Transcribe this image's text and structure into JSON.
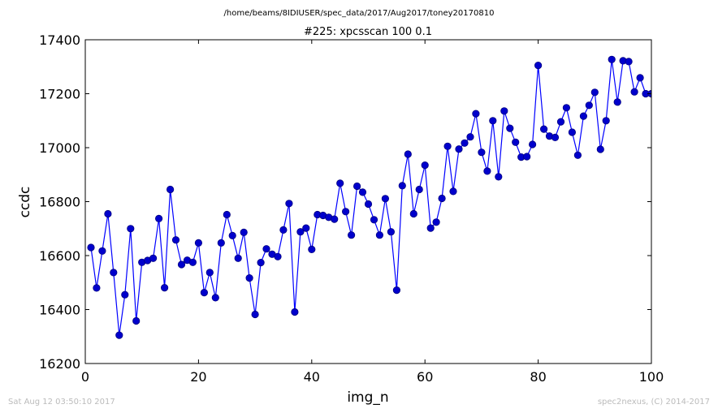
{
  "page": {
    "suptitle": "/home/beams/8IDIUSER/spec_data/2017/Aug2017/toney20170810",
    "footer_left": "Sat Aug 12 03:50:10 2017",
    "footer_right": "spec2nexus, (C) 2014-2017"
  },
  "chart_data": {
    "type": "line",
    "markers": "circle",
    "title": "#225: xpcsscan 100 0.1",
    "xlabel": "img_n",
    "ylabel": "ccdc",
    "xlim": [
      0,
      100
    ],
    "ylim": [
      16200,
      17400
    ],
    "grid": false,
    "color": "#0000ff",
    "xticks": [
      0,
      20,
      40,
      60,
      80,
      100
    ],
    "yticks": [
      16200,
      16400,
      16600,
      16800,
      17000,
      17200,
      17400
    ],
    "x": [
      1,
      2,
      3,
      4,
      5,
      6,
      7,
      8,
      9,
      10,
      11,
      12,
      13,
      14,
      15,
      16,
      17,
      18,
      19,
      20,
      21,
      22,
      23,
      24,
      25,
      26,
      27,
      28,
      29,
      30,
      31,
      32,
      33,
      34,
      35,
      36,
      37,
      38,
      39,
      40,
      41,
      42,
      43,
      44,
      45,
      46,
      47,
      48,
      49,
      50,
      51,
      52,
      53,
      54,
      55,
      56,
      57,
      58,
      59,
      60,
      61,
      62,
      63,
      64,
      65,
      66,
      67,
      68,
      69,
      70,
      71,
      72,
      73,
      74,
      75,
      76,
      77,
      78,
      79,
      80,
      81,
      82,
      83,
      84,
      85,
      86,
      87,
      88,
      89,
      90,
      91,
      92,
      93,
      94,
      95,
      96,
      97,
      98,
      99,
      100
    ],
    "y": [
      16630,
      16480,
      16617,
      16755,
      16537,
      16305,
      16455,
      16700,
      16358,
      16575,
      16582,
      16590,
      16737,
      16481,
      16845,
      16658,
      16567,
      16583,
      16575,
      16647,
      16463,
      16537,
      16444,
      16647,
      16752,
      16674,
      16590,
      16686,
      16517,
      16382,
      16574,
      16625,
      16605,
      16596,
      16695,
      16793,
      16391,
      16688,
      16702,
      16623,
      16752,
      16749,
      16742,
      16735,
      16868,
      16763,
      16676,
      16857,
      16835,
      16791,
      16733,
      16676,
      16811,
      16688,
      16472,
      16859,
      16976,
      16755,
      16845,
      16935,
      16702,
      16724,
      16812,
      17005,
      16838,
      16995,
      17017,
      17040,
      17126,
      16983,
      16913,
      17100,
      16892,
      17136,
      17072,
      17020,
      16965,
      16967,
      17012,
      17305,
      17069,
      17043,
      17038,
      17096,
      17148,
      17057,
      16972,
      17117,
      17157,
      17205,
      16994,
      17100,
      17327,
      17169,
      17322,
      17319,
      17207,
      17259,
      17200,
      17200
    ]
  }
}
